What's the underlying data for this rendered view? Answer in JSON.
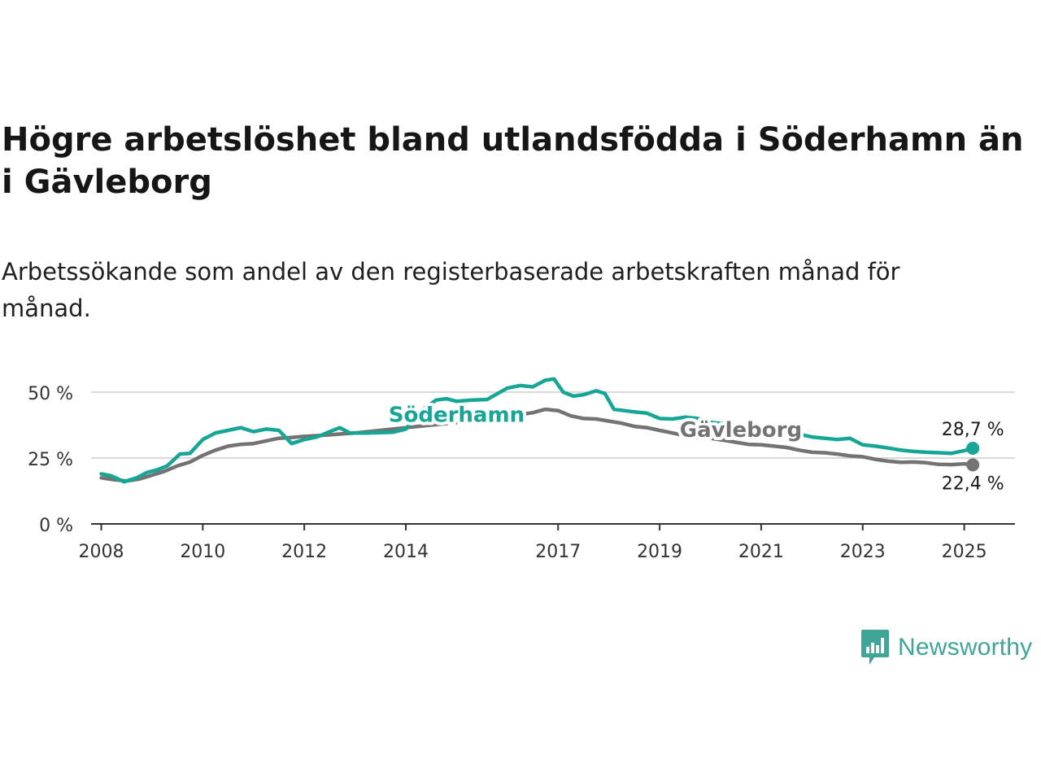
{
  "title": "Högre arbetslöshet bland utlandsfödda i Söderhamn än i Gävleborg",
  "subtitle": "Arbetssökande som andel av den registerbaserade arbetskraften månad för månad.",
  "brand": {
    "name": "Newsworthy",
    "icon": "newsworthy-logo-icon",
    "color": "#3fa597"
  },
  "chart_data": {
    "type": "line",
    "title": "",
    "xlabel": "",
    "ylabel": "",
    "x_ticks": [
      2008,
      2010,
      2012,
      2014,
      2017,
      2019,
      2021,
      2023,
      2025
    ],
    "x_tick_labels": [
      "2008",
      "2010",
      "2012",
      "2014",
      "2017",
      "2019",
      "2021",
      "2023",
      "2025"
    ],
    "xlim": [
      2007.8,
      2026.0
    ],
    "y_ticks": [
      0,
      25,
      50
    ],
    "y_tick_labels": [
      "0 %",
      "25 %",
      "50 %"
    ],
    "ylim": [
      0,
      55
    ],
    "grid": true,
    "legend": "inline labels",
    "series": [
      {
        "name": "Gävleborg",
        "color": "#737373",
        "end_label": "22,4 %",
        "points": [
          [
            2008.0,
            17.5
          ],
          [
            2008.25,
            16.8
          ],
          [
            2008.5,
            16.3
          ],
          [
            2008.75,
            17.0
          ],
          [
            2009.0,
            18.5
          ],
          [
            2009.25,
            20.0
          ],
          [
            2009.5,
            22.0
          ],
          [
            2009.75,
            23.5
          ],
          [
            2010.0,
            26.0
          ],
          [
            2010.25,
            28.0
          ],
          [
            2010.5,
            29.5
          ],
          [
            2010.75,
            30.2
          ],
          [
            2011.0,
            30.5
          ],
          [
            2011.25,
            31.5
          ],
          [
            2011.5,
            32.5
          ],
          [
            2011.75,
            32.8
          ],
          [
            2012.0,
            33.2
          ],
          [
            2012.25,
            33.5
          ],
          [
            2012.5,
            33.8
          ],
          [
            2012.75,
            34.2
          ],
          [
            2013.0,
            34.5
          ],
          [
            2013.25,
            35.0
          ],
          [
            2013.5,
            35.5
          ],
          [
            2013.75,
            36.0
          ],
          [
            2014.0,
            36.5
          ],
          [
            2014.5,
            37.5
          ],
          [
            2015.0,
            38.5
          ],
          [
            2015.5,
            39.5
          ],
          [
            2016.0,
            40.5
          ],
          [
            2016.25,
            41.5
          ],
          [
            2016.5,
            42.2
          ],
          [
            2016.75,
            43.5
          ],
          [
            2017.0,
            43.0
          ],
          [
            2017.25,
            41.0
          ],
          [
            2017.5,
            40.0
          ],
          [
            2017.75,
            39.8
          ],
          [
            2018.0,
            39.0
          ],
          [
            2018.25,
            38.2
          ],
          [
            2018.5,
            37.0
          ],
          [
            2018.75,
            36.5
          ],
          [
            2019.0,
            35.5
          ],
          [
            2019.25,
            34.5
          ],
          [
            2019.5,
            33.5
          ],
          [
            2019.75,
            32.8
          ],
          [
            2020.0,
            32.5
          ],
          [
            2020.25,
            31.8
          ],
          [
            2020.5,
            31.0
          ],
          [
            2020.75,
            30.2
          ],
          [
            2021.0,
            30.0
          ],
          [
            2021.25,
            29.5
          ],
          [
            2021.5,
            29.0
          ],
          [
            2021.75,
            28.0
          ],
          [
            2022.0,
            27.2
          ],
          [
            2022.25,
            27.0
          ],
          [
            2022.5,
            26.5
          ],
          [
            2022.75,
            25.8
          ],
          [
            2023.0,
            25.5
          ],
          [
            2023.25,
            24.5
          ],
          [
            2023.5,
            23.8
          ],
          [
            2023.75,
            23.4
          ],
          [
            2024.0,
            23.5
          ],
          [
            2024.25,
            23.2
          ],
          [
            2024.5,
            22.6
          ],
          [
            2024.75,
            22.5
          ],
          [
            2025.0,
            22.8
          ],
          [
            2025.17,
            22.4
          ]
        ]
      },
      {
        "name": "Söderhamn",
        "color": "#17a596",
        "end_label": "28,7 %",
        "points": [
          [
            2008.0,
            19.0
          ],
          [
            2008.2,
            18.2
          ],
          [
            2008.45,
            16.0
          ],
          [
            2008.7,
            17.5
          ],
          [
            2008.9,
            19.5
          ],
          [
            2009.1,
            20.5
          ],
          [
            2009.3,
            22.0
          ],
          [
            2009.55,
            26.5
          ],
          [
            2009.75,
            26.8
          ],
          [
            2010.0,
            32.0
          ],
          [
            2010.25,
            34.5
          ],
          [
            2010.5,
            35.5
          ],
          [
            2010.75,
            36.5
          ],
          [
            2011.0,
            35.0
          ],
          [
            2011.25,
            36.0
          ],
          [
            2011.5,
            35.5
          ],
          [
            2011.75,
            30.5
          ],
          [
            2012.0,
            32.0
          ],
          [
            2012.25,
            33.0
          ],
          [
            2012.5,
            35.0
          ],
          [
            2012.7,
            36.5
          ],
          [
            2012.9,
            34.5
          ],
          [
            2013.25,
            34.5
          ],
          [
            2013.75,
            34.8
          ],
          [
            2014.0,
            36.0
          ],
          [
            2014.3,
            43.0
          ],
          [
            2014.6,
            47.0
          ],
          [
            2014.8,
            47.5
          ],
          [
            2015.0,
            46.5
          ],
          [
            2015.3,
            47.0
          ],
          [
            2015.6,
            47.2
          ],
          [
            2016.0,
            51.5
          ],
          [
            2016.25,
            52.5
          ],
          [
            2016.5,
            52.0
          ],
          [
            2016.75,
            54.5
          ],
          [
            2016.92,
            55.0
          ],
          [
            2017.1,
            50.0
          ],
          [
            2017.3,
            48.5
          ],
          [
            2017.5,
            49.0
          ],
          [
            2017.75,
            50.5
          ],
          [
            2017.92,
            49.5
          ],
          [
            2018.1,
            43.5
          ],
          [
            2018.3,
            43.0
          ],
          [
            2018.5,
            42.5
          ],
          [
            2018.75,
            42.0
          ],
          [
            2019.0,
            40.0
          ],
          [
            2019.25,
            39.8
          ],
          [
            2019.5,
            40.5
          ],
          [
            2019.75,
            40.0
          ],
          [
            2020.0,
            38.5
          ],
          [
            2020.25,
            38.0
          ],
          [
            2020.5,
            37.0
          ],
          [
            2020.75,
            36.5
          ],
          [
            2021.0,
            36.0
          ],
          [
            2021.25,
            36.2
          ],
          [
            2021.5,
            35.5
          ],
          [
            2021.75,
            34.0
          ],
          [
            2022.0,
            33.0
          ],
          [
            2022.25,
            32.5
          ],
          [
            2022.5,
            32.0
          ],
          [
            2022.75,
            32.5
          ],
          [
            2023.0,
            30.0
          ],
          [
            2023.25,
            29.5
          ],
          [
            2023.5,
            28.8
          ],
          [
            2023.75,
            28.0
          ],
          [
            2024.0,
            27.5
          ],
          [
            2024.25,
            27.2
          ],
          [
            2024.5,
            27.0
          ],
          [
            2024.75,
            26.8
          ],
          [
            2025.0,
            27.8
          ],
          [
            2025.17,
            28.7
          ]
        ]
      }
    ],
    "inline_labels": [
      {
        "series": "Söderhamn",
        "text": "Söderhamn",
        "x": 2015.0,
        "y": 38.8
      },
      {
        "series": "Gävleborg",
        "text": "Gävleborg",
        "x": 2020.6,
        "y": 33.0
      }
    ]
  }
}
